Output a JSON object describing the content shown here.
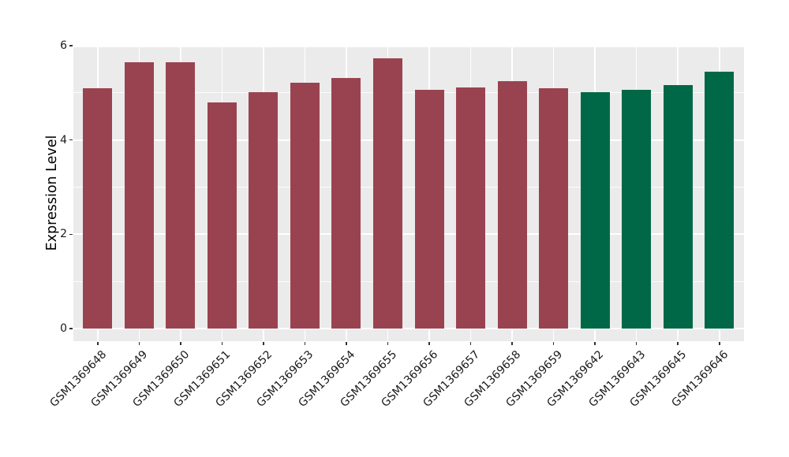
{
  "chart_data": {
    "type": "bar",
    "title": "",
    "xlabel": "",
    "ylabel": "Expression Level",
    "ylim": [
      0,
      6
    ],
    "yticks": [
      0,
      2,
      4,
      6
    ],
    "yticks_minor": [
      1,
      3,
      5
    ],
    "grid": true,
    "legend_position": "none",
    "categories": [
      "GSM1369648",
      "GSM1369649",
      "GSM1369650",
      "GSM1369651",
      "GSM1369652",
      "GSM1369653",
      "GSM1369654",
      "GSM1369655",
      "GSM1369656",
      "GSM1369657",
      "GSM1369658",
      "GSM1369659",
      "GSM1369642",
      "GSM1369643",
      "GSM1369645",
      "GSM1369646"
    ],
    "values": [
      5.1,
      5.65,
      5.65,
      4.8,
      5.01,
      5.22,
      5.31,
      5.74,
      5.07,
      5.12,
      5.24,
      5.1,
      5.02,
      5.06,
      5.16,
      5.45
    ],
    "bar_colors": [
      "#9A4350",
      "#9A4350",
      "#9A4350",
      "#9A4350",
      "#9A4350",
      "#9A4350",
      "#9A4350",
      "#9A4350",
      "#9A4350",
      "#9A4350",
      "#9A4350",
      "#9A4350",
      "#016847",
      "#016847",
      "#016847",
      "#016847"
    ]
  },
  "style": {
    "figure_bg": "#FFFFFF",
    "panel_bg": "#EBEBEB",
    "grid_color": "#FFFFFF",
    "tick_color": "#333333",
    "text_color": "#1A1A1A"
  }
}
